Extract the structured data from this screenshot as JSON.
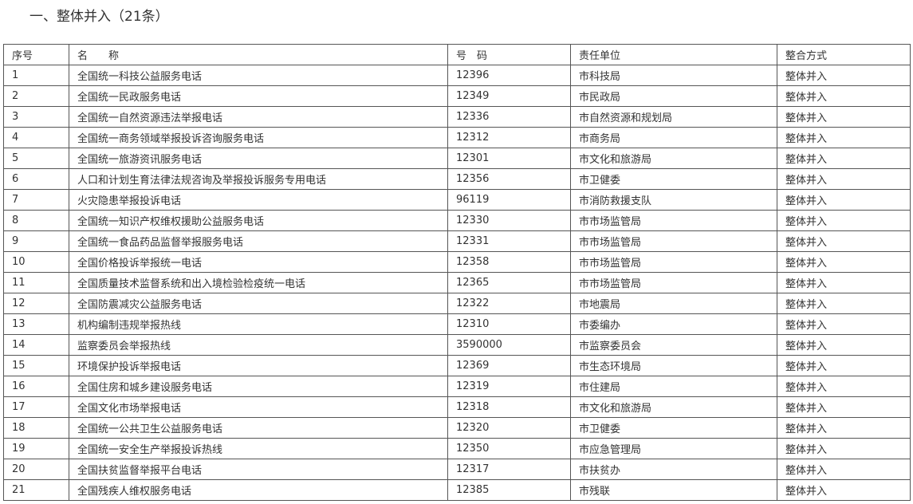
{
  "title": "一、整体并入（21条）",
  "columns": [
    "序号",
    "名　　称",
    "号　码",
    "责任单位",
    "整合方式"
  ],
  "rows": [
    [
      "1",
      "全国统一科技公益服务电话",
      "12396",
      "市科技局",
      "整体并入"
    ],
    [
      "2",
      "全国统一民政服务电话",
      "12349",
      "市民政局",
      "整体并入"
    ],
    [
      "3",
      "全国统一自然资源违法举报电话",
      "12336",
      "市自然资源和规划局",
      "整体并入"
    ],
    [
      "4",
      "全国统一商务领域举报投诉咨询服务电话",
      "12312",
      "市商务局",
      "整体并入"
    ],
    [
      "5",
      "全国统一旅游资讯服务电话",
      "12301",
      "市文化和旅游局",
      "整体并入"
    ],
    [
      "6",
      "人口和计划生育法律法规咨询及举报投诉服务专用电话",
      "12356",
      "市卫健委",
      "整体并入"
    ],
    [
      "7",
      "火灾隐患举报投诉电话",
      "96119",
      "市消防救援支队",
      "整体并入"
    ],
    [
      "8",
      "全国统一知识产权维权援助公益服务电话",
      "12330",
      "市市场监管局",
      "整体并入"
    ],
    [
      "9",
      "全国统一食品药品监督举报服务电话",
      "12331",
      "市市场监管局",
      "整体并入"
    ],
    [
      "10",
      "全国价格投诉举报统一电话",
      "12358",
      "市市场监管局",
      "整体并入"
    ],
    [
      "11",
      "全国质量技术监督系统和出入境检验检疫统一电话",
      "12365",
      "市市场监管局",
      "整体并入"
    ],
    [
      "12",
      "全国防震减灾公益服务电话",
      "12322",
      "市地震局",
      "整体并入"
    ],
    [
      "13",
      "机构编制违规举报热线",
      "12310",
      "市委编办",
      "整体并入"
    ],
    [
      "14",
      "监察委员会举报热线",
      "3590000",
      "市监察委员会",
      "整体并入"
    ],
    [
      "15",
      "环境保护投诉举报电话",
      "12369",
      "市生态环境局",
      "整体并入"
    ],
    [
      "16",
      "全国住房和城乡建设服务电话",
      "12319",
      "市住建局",
      "整体并入"
    ],
    [
      "17",
      "全国文化市场举报电话",
      "12318",
      "市文化和旅游局",
      "整体并入"
    ],
    [
      "18",
      "全国统一公共卫生公益服务电话",
      "12320",
      "市卫健委",
      "整体并入"
    ],
    [
      "19",
      "全国统一安全生产举报投诉热线",
      "12350",
      "市应急管理局",
      "整体并入"
    ],
    [
      "20",
      "全国扶贫监督举报平台电话",
      "12317",
      "市扶贫办",
      "整体并入"
    ],
    [
      "21",
      "全国残疾人维权服务电话",
      "12385",
      "市残联",
      "整体并入"
    ]
  ]
}
